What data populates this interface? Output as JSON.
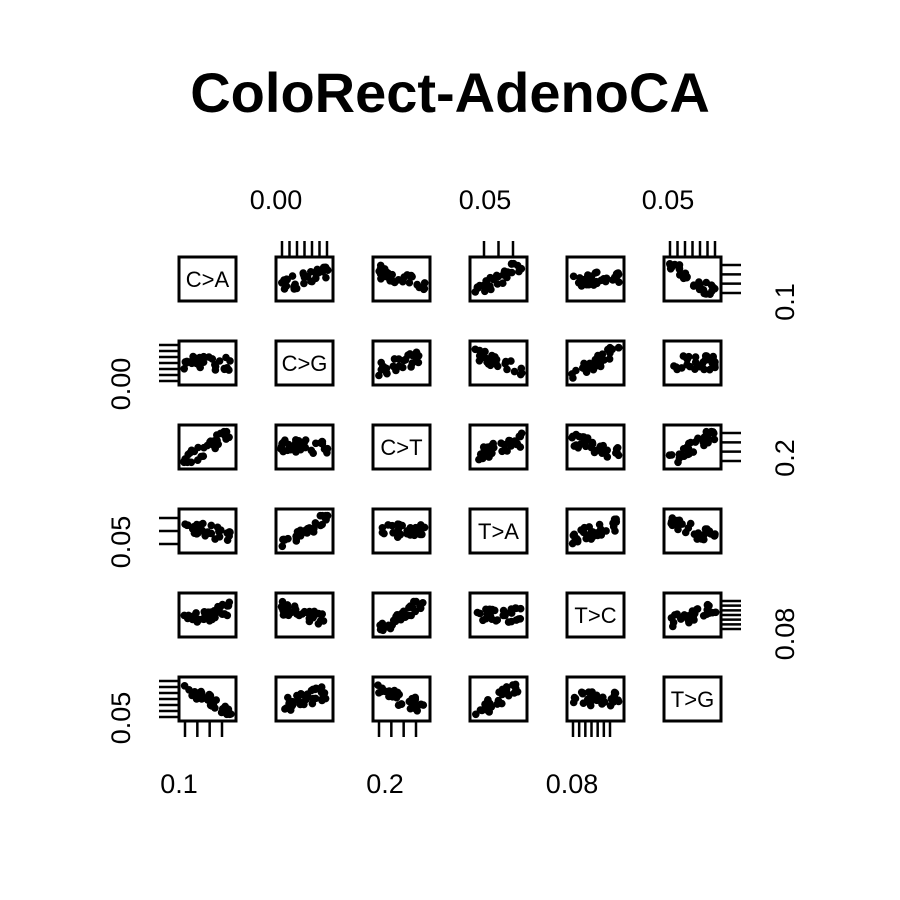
{
  "chart_data": {
    "type": "scatter",
    "kind": "scatterplot-matrix",
    "title": "ColoRect-AdenoCA",
    "variables": [
      "C>A",
      "C>G",
      "C>T",
      "T>A",
      "T>C",
      "T>G"
    ],
    "point_color": "#000000",
    "tick_labels": {
      "top": [
        "0.00",
        "0.05",
        "0.05"
      ],
      "bottom": [
        "0.1",
        "0.2",
        "0.08"
      ],
      "left": [
        "0.00",
        "0.05",
        "0.05"
      ],
      "right": [
        "0.1",
        "0.2",
        "0.08"
      ]
    },
    "axis_ticks": {
      "top": [
        {
          "col": 1,
          "count": 7
        },
        {
          "col": 3,
          "count": 3
        },
        {
          "col": 5,
          "count": 7
        }
      ],
      "bottom": [
        {
          "col": 0,
          "count": 4
        },
        {
          "col": 2,
          "count": 4
        },
        {
          "col": 4,
          "count": 7
        }
      ],
      "left": [
        {
          "row": 1,
          "count": 7
        },
        {
          "row": 3,
          "count": 3
        },
        {
          "row": 5,
          "count": 7
        }
      ],
      "right": [
        {
          "row": 0,
          "count": 4
        },
        {
          "row": 2,
          "count": 4
        },
        {
          "row": 4,
          "count": 7
        }
      ]
    },
    "grid": false,
    "legend": "none"
  }
}
